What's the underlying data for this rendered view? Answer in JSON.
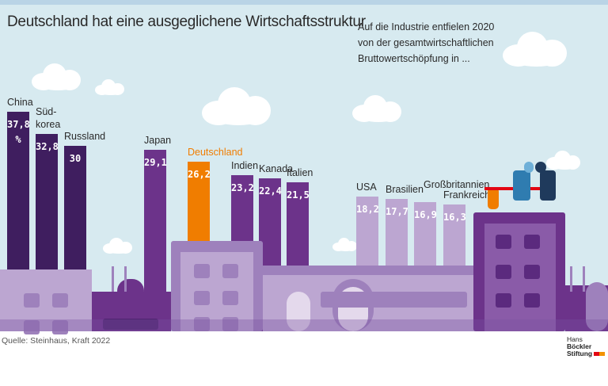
{
  "title": "Deutschland hat eine ausgeglichene Wirtschaftsstruktur",
  "subtitle": "Auf die Industrie entfielen 2020\nvon der gesamtwirtschaftlichen\nBruttowertschöpfung in ...",
  "source": "Quelle: Steinhaus, Kraft 2022",
  "logo": {
    "line1a": "Hans",
    "line1b": "Böckler",
    "line2": "Stiftung"
  },
  "colors": {
    "dark": "#3f1e5f",
    "mid": "#6c338a",
    "highlight": "#f07d00",
    "light": "#bca6d1",
    "sky": "#d7eaf0"
  },
  "chart_data": {
    "type": "bar",
    "title": "Deutschland hat eine ausgeglichene Wirtschaftsstruktur",
    "unit": "%",
    "categories": [
      "China",
      "Süd-korea",
      "Russland",
      "Japan",
      "Deutschland",
      "Indien",
      "Kanada",
      "Italien",
      "USA",
      "Brasilien",
      "Großbritannien",
      "Frankreich"
    ],
    "values": [
      37.8,
      32.8,
      30,
      29.1,
      26.2,
      23.2,
      22.4,
      21.5,
      18.2,
      17.7,
      16.9,
      16.3
    ],
    "value_labels": [
      "37,8\n%",
      "32,8",
      "30",
      "29,1",
      "26,2",
      "23,2",
      "22,4",
      "21,5",
      "18,2",
      "17,7",
      "16,9",
      "16,3"
    ],
    "highlight": "Deutschland",
    "grid": false
  }
}
